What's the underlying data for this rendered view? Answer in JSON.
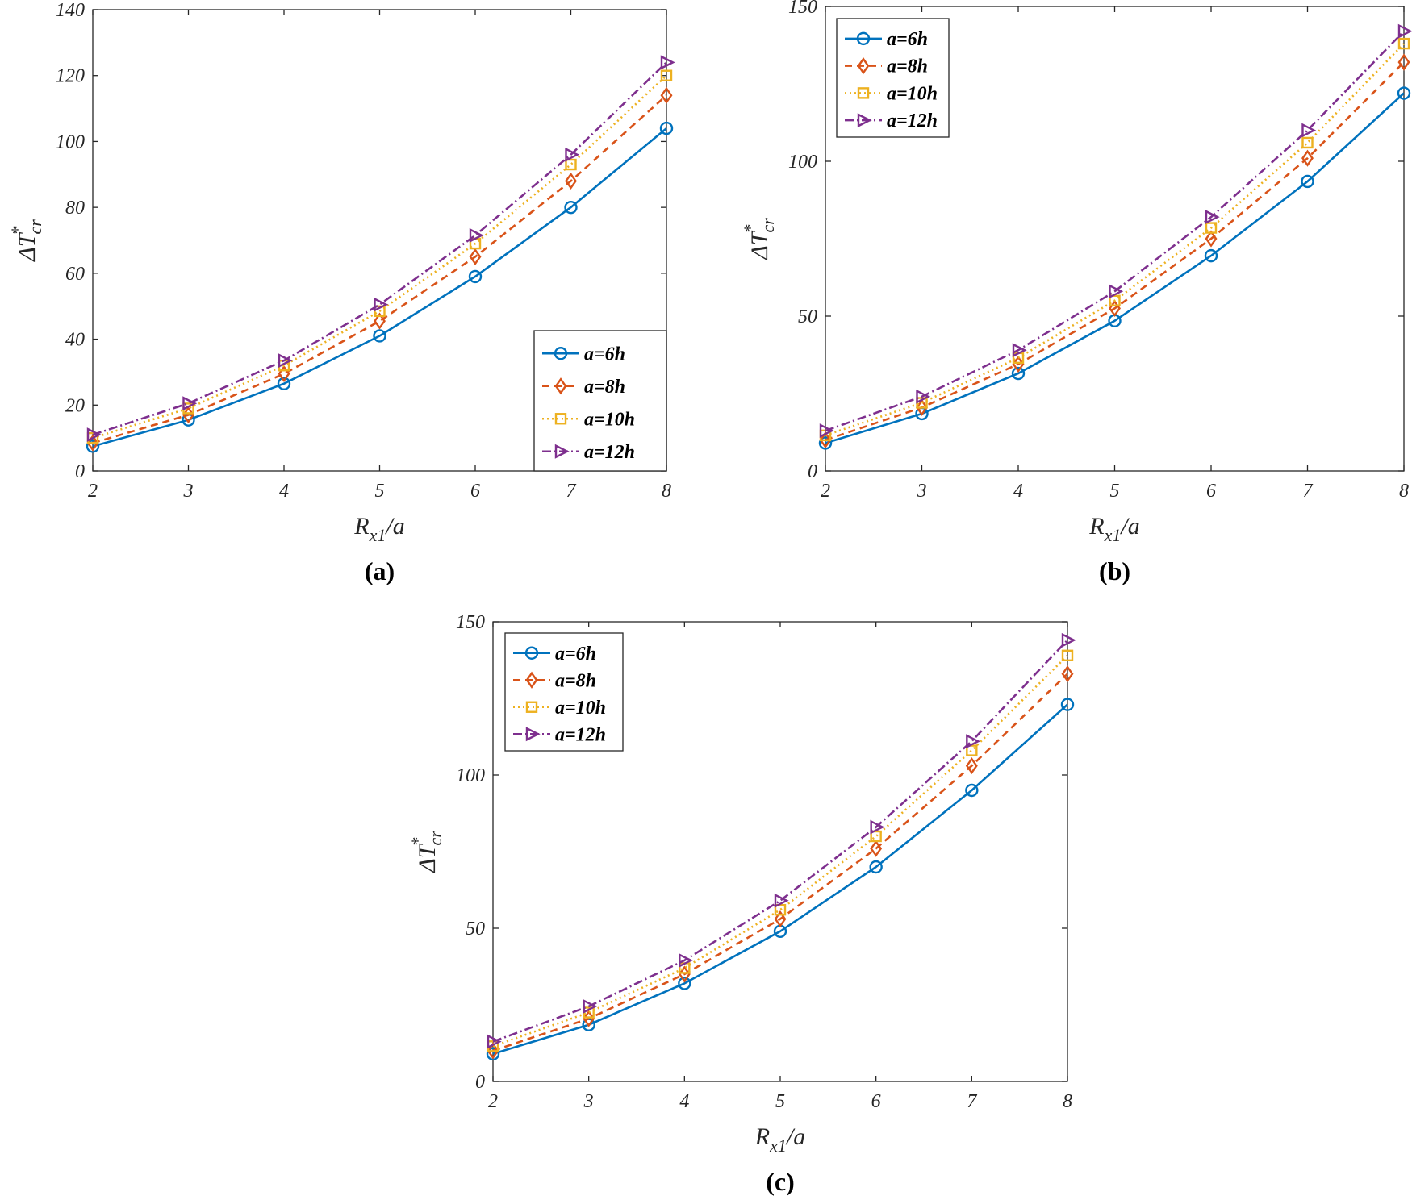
{
  "chart_data": [
    {
      "type": "line",
      "panel_label": "(a)",
      "xlabel": {
        "main": "R",
        "sub": "x1",
        "suffix": "/a"
      },
      "ylabel": {
        "main": "ΔT",
        "sup": "*",
        "sub": "cr"
      },
      "x": [
        2,
        3,
        4,
        5,
        6,
        7,
        8
      ],
      "xlim": [
        2,
        8
      ],
      "ylim": [
        0,
        140
      ],
      "yticks": [
        0,
        20,
        40,
        60,
        80,
        100,
        120,
        140
      ],
      "legend_position": "bottom-right",
      "series": [
        {
          "name": "a=6h",
          "values": [
            7.5,
            15.5,
            26.5,
            41,
            59,
            80,
            104
          ]
        },
        {
          "name": "a=8h",
          "values": [
            8.5,
            17,
            29.5,
            45.5,
            65,
            88,
            114
          ]
        },
        {
          "name": "a=10h",
          "values": [
            10,
            19,
            32,
            48.5,
            69,
            93,
            120
          ]
        },
        {
          "name": "a=12h",
          "values": [
            11,
            20.5,
            33.5,
            50.5,
            71.5,
            96,
            124
          ]
        }
      ]
    },
    {
      "type": "line",
      "panel_label": "(b)",
      "xlabel": {
        "main": "R",
        "sub": "x1",
        "suffix": "/a"
      },
      "ylabel": {
        "main": "ΔT",
        "sup": "*",
        "sub": "cr"
      },
      "x": [
        2,
        3,
        4,
        5,
        6,
        7,
        8
      ],
      "xlim": [
        2,
        8
      ],
      "ylim": [
        0,
        150
      ],
      "yticks": [
        0,
        50,
        100,
        150
      ],
      "legend_position": "top-left",
      "series": [
        {
          "name": "a=6h",
          "values": [
            9,
            18.5,
            31.5,
            48.5,
            69.5,
            93.5,
            122
          ]
        },
        {
          "name": "a=8h",
          "values": [
            10,
            20.5,
            34.5,
            52.5,
            75,
            101,
            132
          ]
        },
        {
          "name": "a=10h",
          "values": [
            11.5,
            22,
            36.5,
            55,
            78.5,
            106,
            138
          ]
        },
        {
          "name": "a=12h",
          "values": [
            13,
            24,
            39,
            58,
            82,
            110,
            142
          ]
        }
      ]
    },
    {
      "type": "line",
      "panel_label": "(c)",
      "xlabel": {
        "main": "R",
        "sub": "x1",
        "suffix": "/a"
      },
      "ylabel": {
        "main": "ΔT",
        "sup": "*",
        "sub": "cr"
      },
      "x": [
        2,
        3,
        4,
        5,
        6,
        7,
        8
      ],
      "xlim": [
        2,
        8
      ],
      "ylim": [
        0,
        150
      ],
      "yticks": [
        0,
        50,
        100,
        150
      ],
      "legend_position": "top-left",
      "series": [
        {
          "name": "a=6h",
          "values": [
            9,
            18.5,
            32,
            49,
            70,
            95,
            123
          ]
        },
        {
          "name": "a=8h",
          "values": [
            10,
            20.5,
            35,
            53,
            76,
            103,
            133
          ]
        },
        {
          "name": "a=10h",
          "values": [
            11.5,
            22.5,
            37,
            56,
            80,
            108,
            139
          ]
        },
        {
          "name": "a=12h",
          "values": [
            13,
            24.5,
            39.5,
            59,
            83,
            111,
            144
          ]
        }
      ]
    }
  ],
  "series_styles": [
    {
      "color": "#0072BD",
      "dash": "",
      "marker": "circle"
    },
    {
      "color": "#D95319",
      "dash": "9 6",
      "marker": "diamond"
    },
    {
      "color": "#EDB120",
      "dash": "2 4",
      "marker": "square"
    },
    {
      "color": "#7E2F8E",
      "dash": "11 4 2 4",
      "marker": "triangle-right"
    }
  ]
}
